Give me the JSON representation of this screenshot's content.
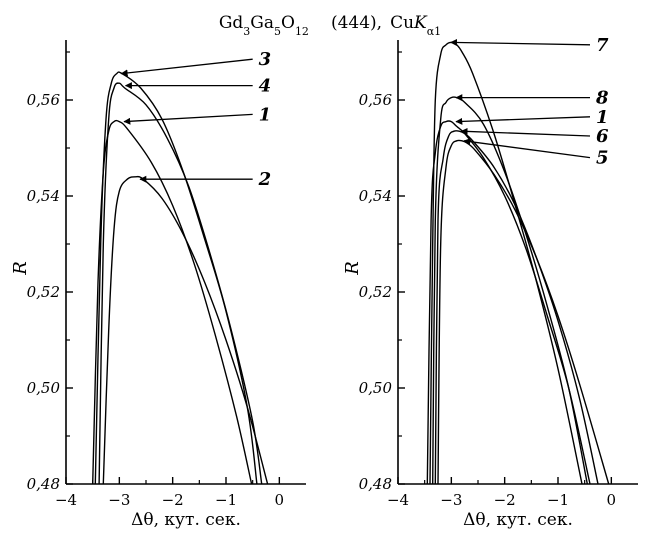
{
  "title": {
    "formula": [
      {
        "text": "Gd",
        "sub": false
      },
      {
        "text": "3",
        "sub": true
      },
      {
        "text": "Ga",
        "sub": false
      },
      {
        "text": "5",
        "sub": true
      },
      {
        "text": "O",
        "sub": false
      },
      {
        "text": "12",
        "sub": true
      }
    ],
    "reflection": "(444),",
    "radiation_prefix": "Cu",
    "radiation_symbol": "K",
    "radiation_sub": "α1"
  },
  "chart_data": [
    {
      "type": "line",
      "panel": "left",
      "xlabel": "Δθ, кут. сек.",
      "ylabel": "R",
      "xlim": [
        -4,
        0.5
      ],
      "ylim": [
        0.48,
        0.5725
      ],
      "xticks": [
        -4,
        -3,
        -2,
        -1,
        0
      ],
      "xtick_labels": [
        "−4",
        "−3",
        "−2",
        "−1",
        "0"
      ],
      "yticks": [
        0.48,
        0.5,
        0.52,
        0.54,
        0.56
      ],
      "ytick_labels": [
        "0,48",
        "0,50",
        "0,52",
        "0,54",
        "0,56"
      ],
      "grid": false,
      "series": [
        {
          "name": "3",
          "x": [
            -3.45,
            -3.35,
            -3.25,
            -3.15,
            -3.05,
            -2.95,
            -2.6,
            -2.2,
            -1.8,
            -1.4,
            -1.0,
            -0.6,
            -0.42
          ],
          "y": [
            0.48,
            0.53,
            0.556,
            0.5635,
            0.5655,
            0.5655,
            0.5625,
            0.556,
            0.545,
            0.531,
            0.516,
            0.496,
            0.48
          ]
        },
        {
          "name": "4",
          "x": [
            -3.38,
            -3.3,
            -3.2,
            -3.1,
            -3.0,
            -2.9,
            -2.5,
            -2.1,
            -1.7,
            -1.3,
            -0.9,
            -0.5,
            -0.33
          ],
          "y": [
            0.48,
            0.53,
            0.556,
            0.5625,
            0.5635,
            0.5625,
            0.559,
            0.552,
            0.542,
            0.528,
            0.512,
            0.493,
            0.48
          ]
        },
        {
          "name": "1",
          "x": [
            -3.5,
            -3.4,
            -3.3,
            -3.2,
            -3.1,
            -3.0,
            -2.85,
            -2.4,
            -2.0,
            -1.6,
            -1.2,
            -0.8,
            -0.52
          ],
          "y": [
            0.48,
            0.522,
            0.545,
            0.5535,
            0.5555,
            0.5555,
            0.554,
            0.547,
            0.538,
            0.526,
            0.511,
            0.494,
            0.48
          ]
        },
        {
          "name": "2",
          "x": [
            -3.3,
            -3.2,
            -3.1,
            -3.0,
            -2.85,
            -2.7,
            -2.55,
            -2.2,
            -1.8,
            -1.4,
            -1.0,
            -0.6,
            -0.22
          ],
          "y": [
            0.48,
            0.512,
            0.533,
            0.541,
            0.5435,
            0.544,
            0.5435,
            0.5395,
            0.532,
            0.522,
            0.51,
            0.496,
            0.48
          ]
        }
      ],
      "annotations": [
        {
          "label": "3",
          "point": [
            -3.0,
            0.5655
          ],
          "text_at": [
            -0.35,
            0.5685
          ]
        },
        {
          "label": "4",
          "point": [
            -2.92,
            0.563
          ],
          "text_at": [
            -0.35,
            0.563
          ]
        },
        {
          "label": "1",
          "point": [
            -2.95,
            0.5555
          ],
          "text_at": [
            -0.35,
            0.557
          ]
        },
        {
          "label": "2",
          "point": [
            -2.65,
            0.5435
          ],
          "text_at": [
            -0.35,
            0.5435
          ]
        }
      ]
    },
    {
      "type": "line",
      "panel": "right",
      "xlabel": "Δθ, кут. сек.",
      "ylabel": "R",
      "xlim": [
        -4,
        0.5
      ],
      "ylim": [
        0.48,
        0.5725
      ],
      "xticks": [
        -4,
        -3,
        -2,
        -1,
        0
      ],
      "xtick_labels": [
        "−4",
        "−3",
        "−2",
        "−1",
        "0"
      ],
      "yticks": [
        0.48,
        0.5,
        0.52,
        0.54,
        0.56
      ],
      "ytick_labels": [
        "0,48",
        "0,50",
        "0,52",
        "0,54",
        "0,56"
      ],
      "grid": false,
      "series": [
        {
          "name": "7",
          "x": [
            -3.4,
            -3.35,
            -3.3,
            -3.2,
            -3.1,
            -3.0,
            -2.9,
            -2.8,
            -2.6,
            -2.2,
            -1.8,
            -1.4,
            -1.0,
            -0.55
          ],
          "y": [
            0.48,
            0.53,
            0.56,
            0.5695,
            0.5715,
            0.572,
            0.5715,
            0.57,
            0.5655,
            0.553,
            0.538,
            0.522,
            0.504,
            0.48
          ]
        },
        {
          "name": "8",
          "x": [
            -3.35,
            -3.3,
            -3.2,
            -3.1,
            -3.0,
            -2.9,
            -2.75,
            -2.4,
            -2.0,
            -1.6,
            -1.2,
            -0.8,
            -0.45
          ],
          "y": [
            0.48,
            0.535,
            0.556,
            0.5595,
            0.5605,
            0.5605,
            0.5595,
            0.555,
            0.545,
            0.532,
            0.517,
            0.5,
            0.48
          ]
        },
        {
          "name": "1",
          "x": [
            -3.45,
            -3.38,
            -3.3,
            -3.2,
            -3.1,
            -3.0,
            -2.9,
            -2.75,
            -2.4,
            -2.0,
            -1.6,
            -1.2,
            -0.8,
            -0.4
          ],
          "y": [
            0.48,
            0.535,
            0.549,
            0.5545,
            0.5555,
            0.5555,
            0.5545,
            0.553,
            0.548,
            0.54,
            0.529,
            0.515,
            0.5,
            0.48
          ]
        },
        {
          "name": "6",
          "x": [
            -3.3,
            -3.25,
            -3.15,
            -3.05,
            -2.95,
            -2.85,
            -2.75,
            -2.6,
            -2.2,
            -1.8,
            -1.4,
            -1.0,
            -0.6,
            -0.25
          ],
          "y": [
            0.48,
            0.535,
            0.548,
            0.5525,
            0.5535,
            0.5535,
            0.553,
            0.5515,
            0.546,
            0.538,
            0.527,
            0.514,
            0.498,
            0.48
          ]
        },
        {
          "name": "5",
          "x": [
            -3.25,
            -3.2,
            -3.1,
            -3.0,
            -2.9,
            -2.8,
            -2.7,
            -2.55,
            -2.2,
            -1.8,
            -1.4,
            -1.0,
            -0.6,
            -0.05
          ],
          "y": [
            0.48,
            0.53,
            0.546,
            0.5505,
            0.5515,
            0.5515,
            0.551,
            0.5495,
            0.5445,
            0.537,
            0.527,
            0.515,
            0.501,
            0.48
          ]
        }
      ],
      "annotations": [
        {
          "label": "7",
          "point": [
            -3.05,
            0.572
          ],
          "text_at": [
            -0.25,
            0.5715
          ]
        },
        {
          "label": "8",
          "point": [
            -2.95,
            0.5605
          ],
          "text_at": [
            -0.25,
            0.5605
          ]
        },
        {
          "label": "1",
          "point": [
            -2.95,
            0.5555
          ],
          "text_at": [
            -0.25,
            0.5565
          ]
        },
        {
          "label": "6",
          "point": [
            -2.85,
            0.5535
          ],
          "text_at": [
            -0.25,
            0.5525
          ]
        },
        {
          "label": "5",
          "point": [
            -2.8,
            0.5515
          ],
          "text_at": [
            -0.25,
            0.548
          ]
        }
      ]
    }
  ]
}
